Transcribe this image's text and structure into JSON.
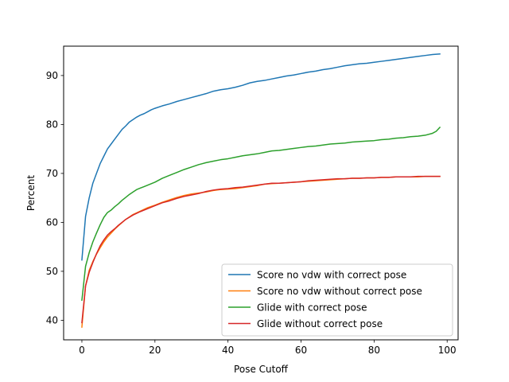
{
  "chart_data": {
    "type": "line",
    "title": "",
    "xlabel": "Pose Cutoff",
    "ylabel": "Percent",
    "xlim": [
      -5,
      103
    ],
    "ylim": [
      36,
      96
    ],
    "xticks": [
      0,
      20,
      40,
      60,
      80,
      100
    ],
    "yticks": [
      40,
      50,
      60,
      70,
      80,
      90
    ],
    "grid": false,
    "legend_position": "lower-right",
    "series": [
      {
        "name": "Score no vdw with correct pose",
        "color": "#1f77b4",
        "x": [
          0,
          1,
          2,
          3,
          4,
          5,
          6,
          7,
          8,
          9,
          10,
          11,
          12,
          13,
          14,
          15,
          16,
          17,
          18,
          19,
          20,
          22,
          24,
          26,
          28,
          30,
          32,
          34,
          36,
          38,
          40,
          42,
          44,
          46,
          48,
          50,
          52,
          54,
          56,
          58,
          60,
          62,
          64,
          66,
          68,
          70,
          72,
          74,
          76,
          78,
          80,
          82,
          84,
          86,
          88,
          90,
          92,
          94,
          96,
          98
        ],
        "y": [
          52.3,
          61.2,
          65.0,
          68.0,
          70.0,
          72.0,
          73.5,
          75.0,
          76.0,
          77.0,
          78.0,
          79.0,
          79.7,
          80.5,
          81.0,
          81.5,
          81.9,
          82.2,
          82.6,
          83.0,
          83.3,
          83.8,
          84.2,
          84.7,
          85.1,
          85.5,
          85.9,
          86.3,
          86.8,
          87.1,
          87.3,
          87.6,
          88.0,
          88.5,
          88.8,
          89.0,
          89.3,
          89.6,
          89.9,
          90.1,
          90.4,
          90.7,
          90.9,
          91.2,
          91.4,
          91.7,
          92.0,
          92.2,
          92.4,
          92.5,
          92.7,
          92.9,
          93.1,
          93.3,
          93.5,
          93.7,
          93.9,
          94.1,
          94.3,
          94.4
        ]
      },
      {
        "name": "Score no vdw without correct pose",
        "color": "#ff7f0e",
        "x": [
          0,
          1,
          2,
          3,
          4,
          5,
          6,
          7,
          8,
          9,
          10,
          12,
          14,
          16,
          18,
          20,
          22,
          24,
          26,
          28,
          30,
          32,
          34,
          36,
          38,
          40,
          42,
          44,
          46,
          48,
          50,
          52,
          54,
          56,
          58,
          60,
          62,
          64,
          66,
          68,
          70,
          72,
          74,
          76,
          78,
          80,
          82,
          84,
          86,
          88,
          90,
          92,
          94,
          96,
          98
        ],
        "y": [
          38.6,
          47.0,
          50.2,
          52.0,
          53.5,
          54.8,
          56.0,
          57.0,
          57.8,
          58.6,
          59.3,
          60.6,
          61.6,
          62.3,
          63.0,
          63.5,
          64.1,
          64.6,
          65.1,
          65.5,
          65.8,
          66.0,
          66.2,
          66.5,
          66.7,
          66.8,
          66.9,
          67.1,
          67.3,
          67.5,
          67.8,
          67.9,
          68.0,
          68.1,
          68.2,
          68.3,
          68.4,
          68.5,
          68.6,
          68.7,
          68.8,
          68.9,
          69.0,
          69.0,
          69.1,
          69.1,
          69.2,
          69.2,
          69.3,
          69.3,
          69.3,
          69.3,
          69.4,
          69.4,
          69.4
        ]
      },
      {
        "name": "Glide with correct pose",
        "color": "#2ca02c",
        "x": [
          0,
          1,
          2,
          3,
          4,
          5,
          6,
          7,
          8,
          9,
          10,
          11,
          12,
          13,
          14,
          15,
          16,
          17,
          18,
          19,
          20,
          22,
          24,
          26,
          28,
          30,
          32,
          34,
          36,
          38,
          40,
          42,
          44,
          46,
          48,
          50,
          52,
          54,
          56,
          58,
          60,
          62,
          64,
          66,
          68,
          70,
          72,
          74,
          76,
          78,
          80,
          82,
          84,
          86,
          88,
          90,
          92,
          94,
          96,
          97,
          98
        ],
        "y": [
          44.1,
          51.0,
          53.8,
          56.0,
          57.8,
          59.5,
          61.0,
          62.0,
          62.5,
          63.2,
          63.8,
          64.5,
          65.1,
          65.7,
          66.2,
          66.7,
          67.0,
          67.3,
          67.6,
          67.9,
          68.2,
          69.0,
          69.6,
          70.2,
          70.8,
          71.3,
          71.8,
          72.2,
          72.5,
          72.8,
          73.0,
          73.3,
          73.6,
          73.8,
          74.0,
          74.3,
          74.6,
          74.7,
          74.9,
          75.1,
          75.3,
          75.5,
          75.6,
          75.8,
          76.0,
          76.1,
          76.2,
          76.4,
          76.5,
          76.6,
          76.7,
          76.9,
          77.0,
          77.2,
          77.3,
          77.5,
          77.6,
          77.8,
          78.2,
          78.6,
          79.4
        ]
      },
      {
        "name": "Glide without correct pose",
        "color": "#d62728",
        "x": [
          0,
          1,
          2,
          3,
          4,
          5,
          6,
          7,
          8,
          9,
          10,
          12,
          14,
          16,
          18,
          20,
          22,
          24,
          26,
          28,
          30,
          32,
          34,
          36,
          38,
          40,
          42,
          44,
          46,
          48,
          50,
          52,
          54,
          56,
          58,
          60,
          62,
          64,
          66,
          68,
          70,
          72,
          74,
          76,
          78,
          80,
          82,
          84,
          86,
          88,
          90,
          92,
          94,
          96,
          98
        ],
        "y": [
          39.5,
          47.0,
          49.8,
          51.8,
          53.6,
          55.2,
          56.4,
          57.4,
          58.1,
          58.7,
          59.4,
          60.6,
          61.5,
          62.2,
          62.8,
          63.4,
          64.0,
          64.4,
          64.9,
          65.3,
          65.6,
          65.9,
          66.3,
          66.6,
          66.8,
          66.9,
          67.1,
          67.2,
          67.4,
          67.6,
          67.8,
          68.0,
          68.0,
          68.1,
          68.2,
          68.3,
          68.5,
          68.6,
          68.7,
          68.8,
          68.9,
          68.9,
          69.0,
          69.0,
          69.1,
          69.1,
          69.2,
          69.2,
          69.3,
          69.3,
          69.3,
          69.4,
          69.4,
          69.4,
          69.4
        ]
      }
    ]
  }
}
